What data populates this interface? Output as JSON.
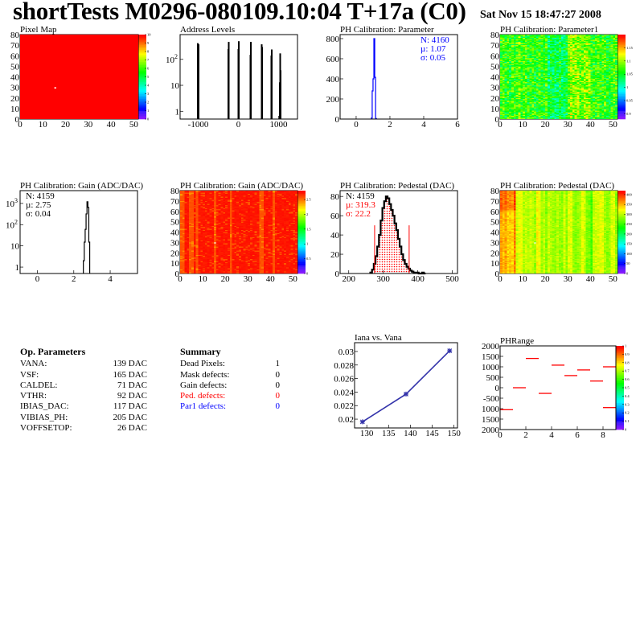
{
  "header": {
    "title": "shortTests M0296-080109.10:04 T+17a (C0)",
    "date": "Sat Nov 15 18:47:27 2008"
  },
  "op_parameters": {
    "heading": "Op. Parameters",
    "rows": [
      {
        "name": "VANA:",
        "value": "139 DAC"
      },
      {
        "name": "VSF:",
        "value": "165 DAC"
      },
      {
        "name": "CALDEL:",
        "value": "71 DAC"
      },
      {
        "name": "VTHR:",
        "value": "92 DAC"
      },
      {
        "name": "IBIAS_DAC:",
        "value": "117 DAC"
      },
      {
        "name": "VIBIAS_PH:",
        "value": "205 DAC"
      },
      {
        "name": "VOFFSETOP:",
        "value": "26 DAC"
      }
    ]
  },
  "summary": {
    "heading": "Summary",
    "rows": [
      {
        "name": "Dead Pixels:",
        "value": "1",
        "color": "#000000"
      },
      {
        "name": "Mask defects:",
        "value": "0",
        "color": "#000000"
      },
      {
        "name": "Gain defects:",
        "value": "0",
        "color": "#000000"
      },
      {
        "name": "Ped. defects:",
        "value": "0",
        "color": "#ff0000"
      },
      {
        "name": "Par1 defects:",
        "value": "0",
        "color": "#0000ff"
      }
    ]
  },
  "chart_data": [
    {
      "id": "pixelmap",
      "type": "heatmap",
      "title": "Pixel Map",
      "xlim": [
        0,
        52
      ],
      "ylim": [
        0,
        80
      ],
      "xticks": [
        "0",
        "10",
        "20",
        "30",
        "40",
        "50"
      ],
      "yticks": [
        "0",
        "10",
        "20",
        "30",
        "40",
        "50",
        "60",
        "70",
        "80"
      ],
      "zlim": [
        0,
        10
      ],
      "zticks": [
        "0",
        "1",
        "2",
        "3",
        "4",
        "5",
        "6",
        "7",
        "8",
        "9",
        "10"
      ],
      "uniform_value": 10,
      "empty_cells": [
        [
          15,
          29
        ]
      ]
    },
    {
      "id": "address",
      "type": "bar",
      "title": "Address Levels",
      "yscale": "log",
      "xlim": [
        -1450,
        1470
      ],
      "ylim": [
        0.5,
        900
      ],
      "xticks": [
        "-1000",
        "0",
        "1000"
      ],
      "yticks": [
        "1",
        "10",
        "10^2"
      ],
      "x": [
        -1010,
        -990,
        -250,
        -240,
        0,
        10,
        300,
        310,
        580,
        590,
        820,
        830,
        1030,
        1040,
        1050
      ],
      "values": [
        420,
        380,
        250,
        470,
        250,
        500,
        150,
        470,
        380,
        300,
        140,
        240,
        13,
        170,
        38
      ]
    },
    {
      "id": "param",
      "type": "bar",
      "title": "PH Calibration: Parameter",
      "xlim": [
        -0.95,
        6
      ],
      "ylim": [
        0,
        840
      ],
      "color": "#0000ff",
      "xticks": [
        "0",
        "2",
        "4",
        "6"
      ],
      "yticks": [
        "0",
        "200",
        "400",
        "600",
        "800"
      ],
      "x": [
        0.925,
        0.975,
        1.025,
        1.075,
        1.125,
        1.175
      ],
      "bin_width": 0.05,
      "values": [
        10,
        280,
        400,
        800,
        415,
        5
      ],
      "stats": {
        "n": "N: 4160",
        "mean": "µ: 1.07",
        "sigma": "σ: 0.05",
        "color": "#0000ff"
      }
    },
    {
      "id": "param1",
      "type": "heatmap",
      "title": "PH Calibration: Parameter1",
      "xlim": [
        0,
        52
      ],
      "ylim": [
        0,
        80
      ],
      "xticks": [
        "0",
        "10",
        "20",
        "30",
        "40",
        "50"
      ],
      "yticks": [
        "0",
        "10",
        "20",
        "30",
        "40",
        "50",
        "60",
        "70",
        "80"
      ],
      "zlim": [
        0.88,
        1.2
      ],
      "zticks": [
        "0.9",
        "0.95",
        "1",
        "1.05",
        "1.1",
        "1.15"
      ]
    },
    {
      "id": "gainhist",
      "type": "bar",
      "title": "PH Calibration: Gain (ADC/DAC)",
      "yscale": "log",
      "xlim": [
        -0.95,
        5.5
      ],
      "ylim": [
        0.5,
        4000
      ],
      "xticks": [
        "0",
        "2",
        "4"
      ],
      "yticks": [
        "1",
        "10",
        "10^2",
        "10^3"
      ],
      "x": [
        2.55,
        2.6,
        2.65,
        2.7,
        2.75,
        2.8,
        2.85
      ],
      "bin_width": 0.05,
      "values": [
        2,
        15,
        60,
        320,
        1200,
        650,
        15
      ],
      "stats": {
        "n": "N: 4159",
        "mean": "µ: 2.75",
        "sigma": "σ: 0.04",
        "color": "#000000"
      }
    },
    {
      "id": "gainmap",
      "type": "heatmap",
      "title": "PH Calibration: Gain (ADC/DAC)",
      "xlim": [
        0,
        52
      ],
      "ylim": [
        0,
        80
      ],
      "xticks": [
        "0",
        "10",
        "20",
        "30",
        "40",
        "50"
      ],
      "yticks": [
        "0",
        "10",
        "20",
        "30",
        "40",
        "50",
        "60",
        "70",
        "80"
      ],
      "zlim": [
        0,
        2.8
      ],
      "zticks": [
        "0",
        "0.5",
        "1",
        "1.5",
        "2",
        "2.5"
      ],
      "empty_cells": [
        [
          15,
          29
        ]
      ]
    },
    {
      "id": "ped",
      "type": "bar",
      "title": "PH Calibration: Pedestal (DAC)",
      "xlim": [
        175,
        515
      ],
      "ylim": [
        0,
        86
      ],
      "xticks": [
        "200",
        "300",
        "400",
        "500"
      ],
      "yticks": [
        "0",
        "20",
        "40",
        "60",
        "80"
      ],
      "bin_width": 5,
      "x": [
        265,
        270,
        275,
        280,
        285,
        290,
        295,
        300,
        305,
        310,
        315,
        320,
        325,
        330,
        335,
        340,
        345,
        350,
        355,
        360,
        365,
        370,
        375,
        380,
        385,
        390,
        395,
        400,
        405,
        410,
        415,
        420
      ],
      "values": [
        1,
        4,
        10,
        18,
        28,
        40,
        55,
        68,
        75,
        80,
        78,
        72,
        66,
        60,
        52,
        45,
        36,
        28,
        20,
        14,
        10,
        7,
        5,
        3,
        2,
        1,
        1,
        1,
        0,
        0,
        1,
        0
      ],
      "cut_lines": [
        275,
        375
      ],
      "cut_height": 50,
      "cut_color": "#ff0000",
      "stats": {
        "n": "N: 4159",
        "mean": "µ: 319.3",
        "sigma": "σ: 22.2",
        "color": "#ff0000"
      }
    },
    {
      "id": "pedmap",
      "type": "heatmap",
      "title": "PH Calibration: Pedestal (DAC)",
      "xlim": [
        0,
        52
      ],
      "ylim": [
        0,
        80
      ],
      "xticks": [
        "0",
        "10",
        "20",
        "30",
        "40",
        "50"
      ],
      "yticks": [
        "0",
        "10",
        "20",
        "30",
        "40",
        "50",
        "60",
        "70",
        "80"
      ],
      "zlim": [
        0,
        420
      ],
      "zticks": [
        "0",
        "50",
        "100",
        "150",
        "200",
        "250",
        "300",
        "350",
        "400"
      ],
      "empty_cells": [
        [
          15,
          29
        ]
      ]
    },
    {
      "id": "iana",
      "type": "line",
      "title": "Iana vs. Vana",
      "xlim": [
        127.2,
        150.8
      ],
      "ylim": [
        0.0187,
        0.0313
      ],
      "color": "#3333aa",
      "xticks": [
        "130",
        "135",
        "140",
        "145",
        "150"
      ],
      "yticks": [
        "0.02",
        "0.022",
        "0.024",
        "0.026",
        "0.028",
        "0.03"
      ],
      "x": [
        129,
        139,
        149
      ],
      "values": [
        0.0196,
        0.0237,
        0.0301
      ]
    },
    {
      "id": "phrange",
      "type": "heatmap",
      "title": "PHRange",
      "xlim": [
        0,
        9
      ],
      "ylim": [
        -2000,
        2000
      ],
      "xticks": [
        "0",
        "2",
        "4",
        "6",
        "8"
      ],
      "yticks": [
        "2000",
        "1500",
        "1000",
        "500",
        "0",
        "-500",
        "1000",
        "1500",
        "2000"
      ],
      "zlim": [
        0,
        1
      ],
      "zticks": [
        "0",
        "0.1",
        "0.2",
        "0.3",
        "0.4",
        "0.5",
        "0.6",
        "0.7",
        "0.8",
        "0.9",
        "1"
      ],
      "segments": [
        {
          "x": [
            0,
            1
          ],
          "y": -1050
        },
        {
          "x": [
            1,
            2
          ],
          "y": 0
        },
        {
          "x": [
            2,
            3
          ],
          "y": 1400
        },
        {
          "x": [
            3,
            4
          ],
          "y": -270
        },
        {
          "x": [
            4,
            5
          ],
          "y": 1080
        },
        {
          "x": [
            5,
            6
          ],
          "y": 580
        },
        {
          "x": [
            6,
            7
          ],
          "y": 850
        },
        {
          "x": [
            7,
            8
          ],
          "y": 320
        },
        {
          "x": [
            8,
            9
          ],
          "y": 1000
        },
        {
          "x": [
            8,
            9
          ],
          "y": -950
        }
      ],
      "color": "#ff0000"
    }
  ]
}
